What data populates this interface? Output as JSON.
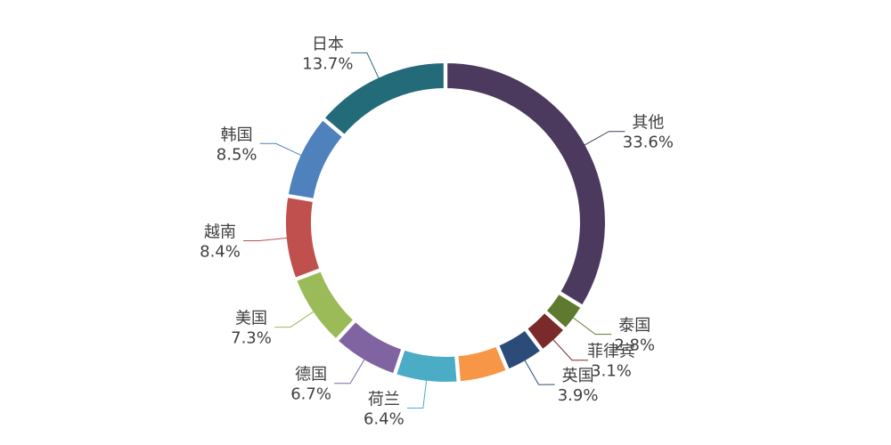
{
  "chart_data": {
    "type": "pie",
    "style": "donut",
    "slices": [
      {
        "name": "其他",
        "value": 33.6,
        "label": "33.6%",
        "color": "#4b3a5e"
      },
      {
        "name": "泰国",
        "value": 2.8,
        "label": "2.8%",
        "color": "#5f7a2e"
      },
      {
        "name": "菲律宾",
        "value": 3.1,
        "label": "3.1%",
        "color": "#7a2a2a"
      },
      {
        "name": "英国",
        "value": 3.9,
        "label": "3.9%",
        "color": "#2b4c78"
      },
      {
        "name": "",
        "value": 5.0,
        "label": "",
        "color": "#f79646"
      },
      {
        "name": "荷兰",
        "value": 6.4,
        "label": "6.4%",
        "color": "#4bacc6"
      },
      {
        "name": "德国",
        "value": 6.7,
        "label": "6.7%",
        "color": "#8064a2"
      },
      {
        "name": "美国",
        "value": 7.3,
        "label": "7.3%",
        "color": "#9bbb59"
      },
      {
        "name": "越南",
        "value": 8.4,
        "label": "8.4%",
        "color": "#c0504d"
      },
      {
        "name": "韩国",
        "value": 8.5,
        "label": "8.5%",
        "color": "#4f81bd"
      },
      {
        "name": "日本",
        "value": 13.7,
        "label": "13.7%",
        "color": "#246b7a"
      }
    ]
  }
}
